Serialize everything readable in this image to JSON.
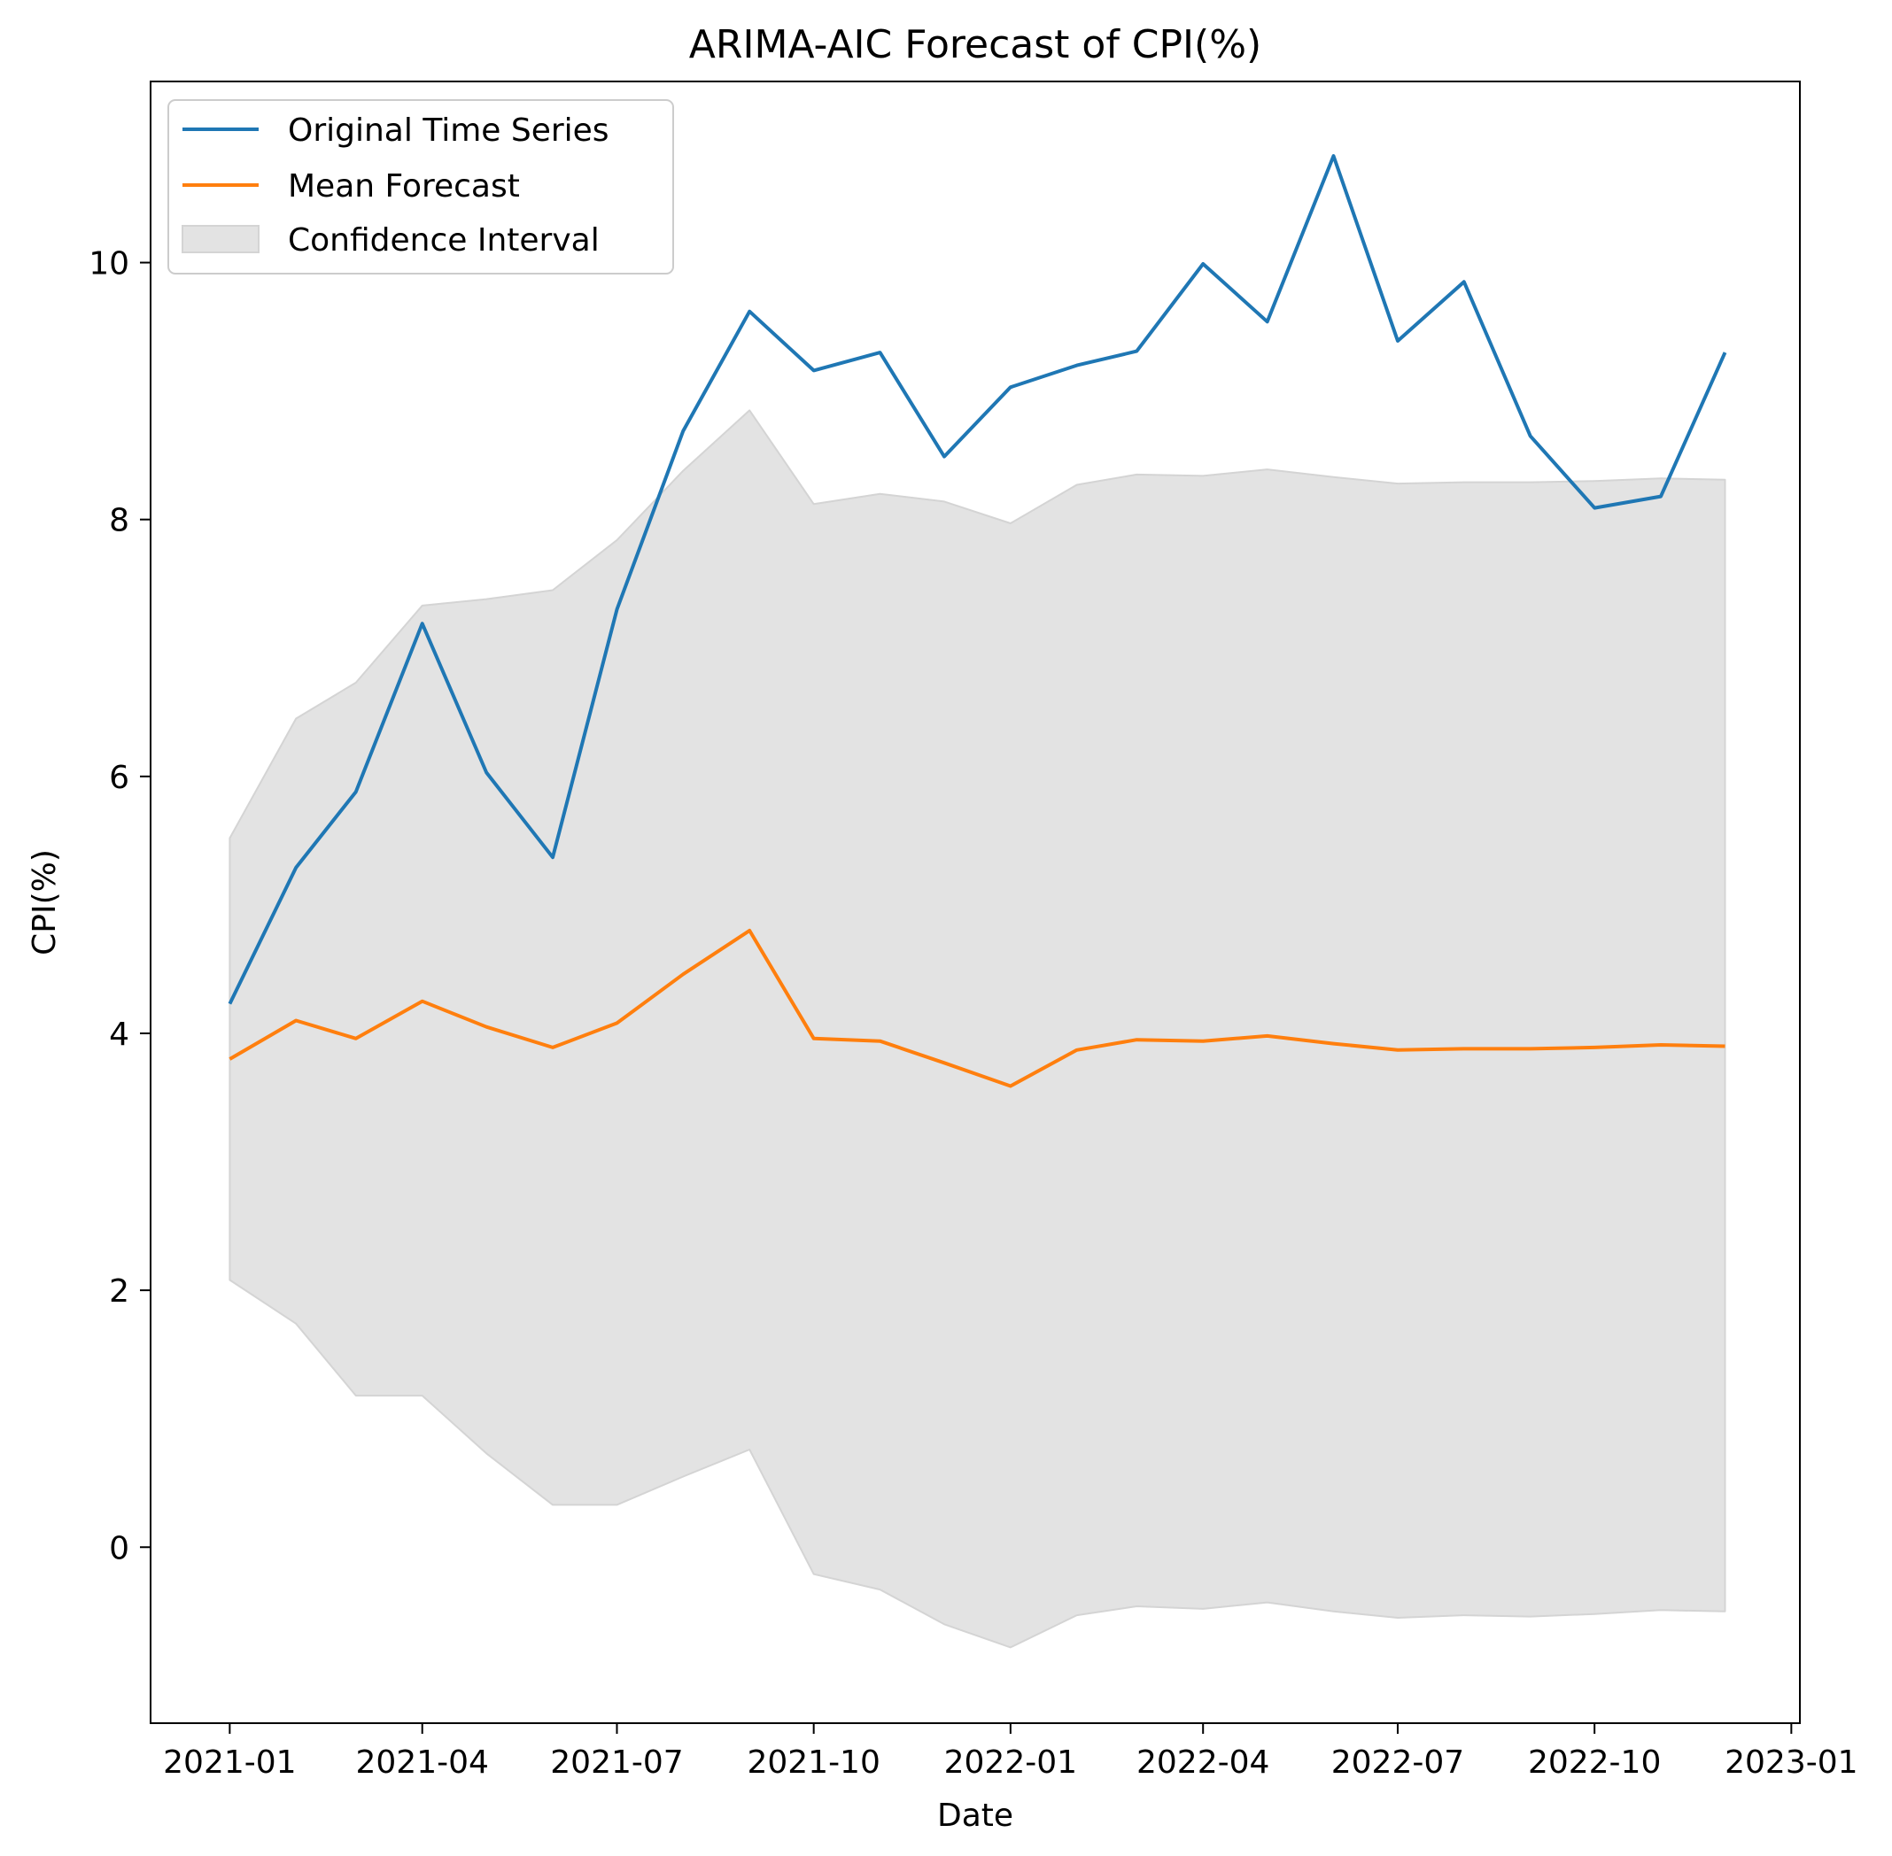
{
  "chart_data": {
    "type": "line",
    "title": "ARIMA-AIC Forecast of CPI(%)",
    "xlabel": "Date",
    "ylabel": "CPI(%)",
    "x": [
      "2021-01-01",
      "2021-02-01",
      "2021-03-01",
      "2021-04-01",
      "2021-05-01",
      "2021-06-01",
      "2021-07-01",
      "2021-08-01",
      "2021-09-01",
      "2021-10-01",
      "2021-11-01",
      "2021-12-01",
      "2022-01-01",
      "2022-02-01",
      "2022-03-01",
      "2022-04-01",
      "2022-05-01",
      "2022-06-01",
      "2022-07-01",
      "2022-08-01",
      "2022-09-01",
      "2022-10-01",
      "2022-11-01",
      "2022-12-01"
    ],
    "xlim": [
      "2020-11-25",
      "2023-01-05"
    ],
    "ylim": [
      -1.37,
      11.41
    ],
    "x_ticks": [
      "2021-01",
      "2021-04",
      "2021-07",
      "2021-10",
      "2022-01",
      "2022-04",
      "2022-07",
      "2022-10",
      "2023-01"
    ],
    "y_ticks": [
      0,
      2,
      4,
      6,
      8,
      10
    ],
    "legend_position": "top-left",
    "grid": false,
    "series": [
      {
        "name": "Original Time Series",
        "kind": "line",
        "color": "#1f77b4",
        "values": [
          4.23,
          5.29,
          5.88,
          7.19,
          6.03,
          5.37,
          7.3,
          8.69,
          9.62,
          9.16,
          9.3,
          8.49,
          9.03,
          9.2,
          9.31,
          9.99,
          9.54,
          10.83,
          9.39,
          9.85,
          8.65,
          8.09,
          8.18,
          9.3
        ]
      },
      {
        "name": "Mean Forecast",
        "kind": "line",
        "color": "#ff7f0e",
        "values": [
          3.8,
          4.1,
          3.96,
          4.25,
          4.05,
          3.89,
          4.08,
          4.46,
          4.8,
          3.96,
          3.94,
          3.77,
          3.59,
          3.87,
          3.95,
          3.94,
          3.98,
          3.92,
          3.87,
          3.88,
          3.88,
          3.89,
          3.91,
          3.9
        ]
      },
      {
        "name": "Confidence Interval",
        "kind": "band",
        "color": "#e3e3e3",
        "lower": [
          2.08,
          1.74,
          1.18,
          1.18,
          0.73,
          0.33,
          0.33,
          0.55,
          0.76,
          -0.21,
          -0.33,
          -0.6,
          -0.78,
          -0.53,
          -0.46,
          -0.48,
          -0.43,
          -0.5,
          -0.55,
          -0.53,
          -0.54,
          -0.52,
          -0.49,
          -0.5
        ],
        "upper": [
          5.52,
          6.45,
          6.73,
          7.33,
          7.38,
          7.45,
          7.84,
          8.38,
          8.85,
          8.12,
          8.2,
          8.14,
          7.97,
          8.27,
          8.35,
          8.34,
          8.39,
          8.33,
          8.28,
          8.29,
          8.29,
          8.3,
          8.32,
          8.31
        ]
      }
    ]
  }
}
